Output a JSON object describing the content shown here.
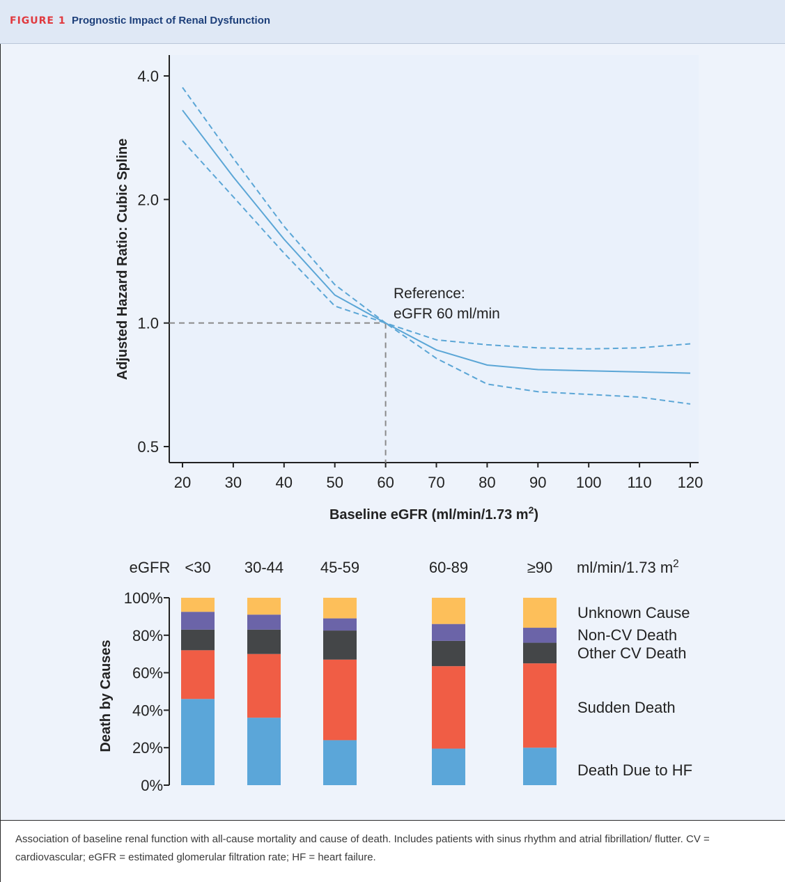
{
  "header": {
    "figure_label": "FIGURE 1",
    "figure_title": "Prognostic Impact of Renal Dysfunction"
  },
  "caption": "Association of baseline renal function with all-cause mortality and cause of death. Includes patients with sinus rhythm and atrial fibrillation/ flutter. CV = cardiovascular; eGFR = estimated glomerular filtration rate; HF = heart failure.",
  "colors": {
    "spline": "#5ba6d6",
    "reference_line": "#8a8a8a",
    "background": "#eef3fb",
    "death_hf": "#5ba6d9",
    "sudden_death": "#f05d45",
    "other_cv": "#444648",
    "non_cv": "#6b64a8",
    "unknown": "#fdbf5a"
  },
  "chart_data": [
    {
      "type": "line",
      "title": "",
      "xlabel": "Baseline eGFR (ml/min/1.73 m²)",
      "ylabel": "Adjusted Hazard Ratio: Cubic Spline",
      "x_ticks": [
        "20",
        "30",
        "40",
        "50",
        "60",
        "70",
        "80",
        "90",
        "100",
        "110",
        "120"
      ],
      "y_ticks": [
        "0.5",
        "1.0",
        "2.0",
        "4.0"
      ],
      "y_scale": "log",
      "xlim": [
        20,
        120
      ],
      "ylim": [
        0.5,
        4.0
      ],
      "reference": {
        "x": 60,
        "y": 1.0,
        "label_line1": "Reference:",
        "label_line2": "eGFR 60 ml/min"
      },
      "x": [
        20,
        30,
        40,
        50,
        60,
        70,
        80,
        90,
        100,
        110,
        120
      ],
      "series": [
        {
          "role": "estimate",
          "style": "solid",
          "values": [
            3.3,
            2.27,
            1.6,
            1.17,
            1.0,
            0.86,
            0.79,
            0.77,
            0.765,
            0.76,
            0.755
          ]
        },
        {
          "role": "upper_ci",
          "style": "dashed",
          "values": [
            3.75,
            2.52,
            1.72,
            1.24,
            1.0,
            0.91,
            0.885,
            0.87,
            0.865,
            0.87,
            0.89
          ]
        },
        {
          "role": "lower_ci",
          "style": "dashed",
          "values": [
            2.78,
            2.03,
            1.48,
            1.1,
            1.0,
            0.82,
            0.71,
            0.68,
            0.67,
            0.66,
            0.635
          ]
        }
      ]
    },
    {
      "type": "bar",
      "stacked": true,
      "title": "",
      "xlabel": "",
      "ylabel": "Death by Causes",
      "category_label": "eGFR",
      "unit_label": "ml/min/1.73 m²",
      "categories": [
        "<30",
        "30-44",
        "45-59",
        "60-89",
        "≥90"
      ],
      "y_ticks": [
        "0%",
        "20%",
        "40%",
        "60%",
        "80%",
        "100%"
      ],
      "ylim": [
        0,
        100
      ],
      "series": [
        {
          "name": "Death Due to HF",
          "color_key": "death_hf",
          "values": [
            46,
            36,
            24,
            19.5,
            20
          ]
        },
        {
          "name": "Sudden Death",
          "color_key": "sudden_death",
          "values": [
            26,
            34,
            43,
            44,
            45
          ]
        },
        {
          "name": "Other CV Death",
          "color_key": "other_cv",
          "values": [
            11,
            13,
            15.5,
            13.5,
            11
          ]
        },
        {
          "name": "Non-CV Death",
          "color_key": "non_cv",
          "values": [
            9.5,
            8,
            6.5,
            9,
            8
          ]
        },
        {
          "name": "Unknown Cause",
          "color_key": "unknown",
          "values": [
            7.5,
            9,
            11,
            14,
            16
          ]
        }
      ]
    }
  ]
}
